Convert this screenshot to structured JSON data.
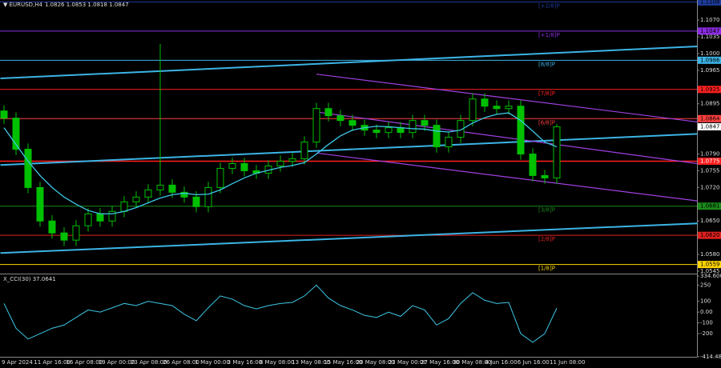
{
  "chart_data": [
    {
      "type": "candlestick",
      "title": "▼ EURUSD,H4",
      "ohlc_label": "1.0826 1.0853 1.0818 1.0847",
      "x_labels": [
        "9 Apr 2024",
        "11 Apr 16:00",
        "16 Apr 08:00",
        "19 Apr 00:00",
        "23 Apr 08:00",
        "26 Apr 08:00",
        "1 May 00:00",
        "3 May 16:00",
        "8 May 08:00",
        "13 May 08:00",
        "15 May 16:00",
        "20 May 08:00",
        "23 May 00:00",
        "27 May 16:00",
        "30 May 08:00",
        "4 Jun 16:00",
        "6 Jun 16:00",
        "11 Jun 08:00"
      ],
      "open": [
        1.088,
        1.0865,
        1.08,
        1.072,
        1.065,
        1.0625,
        1.061,
        1.064,
        1.0665,
        1.065,
        1.067,
        1.069,
        1.07,
        1.0715,
        1.0725,
        1.071,
        1.07,
        1.068,
        1.072,
        1.076,
        1.077,
        1.0755,
        1.075,
        1.0765,
        1.0775,
        1.078,
        1.0815,
        1.0885,
        1.087,
        1.086,
        1.085,
        1.084,
        1.0835,
        1.0845,
        1.0835,
        1.086,
        1.085,
        1.0805,
        1.0825,
        1.086,
        1.0905,
        1.089,
        1.0885,
        1.089,
        1.079,
        1.0745,
        1.074
      ],
      "high": [
        1.0892,
        1.0877,
        1.0812,
        1.0732,
        1.0662,
        1.0637,
        1.0652,
        1.0677,
        1.0677,
        1.0682,
        1.0702,
        1.0712,
        1.0727,
        1.102,
        1.0737,
        1.0722,
        1.0712,
        1.0732,
        1.0772,
        1.0782,
        1.0782,
        1.0767,
        1.0777,
        1.0787,
        1.0792,
        1.0827,
        1.0897,
        1.0897,
        1.0882,
        1.0872,
        1.0862,
        1.0852,
        1.0857,
        1.0857,
        1.0872,
        1.0872,
        1.0862,
        1.0837,
        1.0872,
        1.0917,
        1.0917,
        1.0902,
        1.0902,
        1.0902,
        1.0802,
        1.0757,
        1.0853
      ],
      "low": [
        1.0853,
        1.0788,
        1.0708,
        1.0638,
        1.0613,
        1.0598,
        1.0598,
        1.0628,
        1.0638,
        1.0638,
        1.0658,
        1.0678,
        1.0688,
        1.0703,
        1.0698,
        1.0688,
        1.0668,
        1.0668,
        1.0708,
        1.0748,
        1.0743,
        1.0738,
        1.0738,
        1.0753,
        1.0763,
        1.0768,
        1.0803,
        1.0858,
        1.0848,
        1.0838,
        1.0828,
        1.0823,
        1.0823,
        1.0823,
        1.0823,
        1.0838,
        1.0793,
        1.0793,
        1.0813,
        1.0848,
        1.0878,
        1.0873,
        1.0873,
        1.0778,
        1.0733,
        1.0728,
        1.0728
      ],
      "close": [
        1.0865,
        1.08,
        1.072,
        1.065,
        1.0625,
        1.061,
        1.064,
        1.0665,
        1.065,
        1.067,
        1.069,
        1.07,
        1.0715,
        1.0725,
        1.071,
        1.07,
        1.068,
        1.072,
        1.076,
        1.077,
        1.0755,
        1.075,
        1.0765,
        1.0775,
        1.078,
        1.0815,
        1.0885,
        1.087,
        1.086,
        1.085,
        1.084,
        1.0835,
        1.0845,
        1.0835,
        1.086,
        1.085,
        1.0805,
        1.0825,
        1.086,
        1.0905,
        1.089,
        1.0885,
        1.089,
        1.079,
        1.0745,
        1.074,
        1.0847
      ],
      "color": "#00c000",
      "ma": {
        "color": "#3cc8e6",
        "values": [
          1.0845,
          1.081,
          1.0775,
          1.0745,
          1.072,
          1.07,
          1.0685,
          1.0672,
          1.0665,
          1.0665,
          1.067,
          1.0678,
          1.0688,
          1.0698,
          1.0705,
          1.0708,
          1.0705,
          1.0706,
          1.0715,
          1.0728,
          1.074,
          1.075,
          1.0756,
          1.0762,
          1.0766,
          1.0772,
          1.079,
          1.081,
          1.0828,
          1.084,
          1.0845,
          1.0848,
          1.0847,
          1.0845,
          1.0843,
          1.0842,
          1.0838,
          1.0836,
          1.084,
          1.0855,
          1.0866,
          1.0873,
          1.0876,
          1.086,
          1.0838,
          1.0815,
          1.0805
        ]
      },
      "trendlines": [
        {
          "color": "#3cb4e6",
          "x": [
            -0.3,
            57.7
          ],
          "y": [
            1.0948,
            1.1015
          ]
        },
        {
          "color": "#3cb4e6",
          "x": [
            -0.3,
            57.7
          ],
          "y": [
            1.0767,
            1.0832
          ]
        },
        {
          "color": "#3cb4e6",
          "x": [
            -0.3,
            57.7
          ],
          "y": [
            1.0583,
            1.0645
          ]
        },
        {
          "color": "#a040e0",
          "x": [
            26,
            57.7
          ],
          "y": [
            1.0957,
            1.0857
          ]
        },
        {
          "color": "#a040e0",
          "x": [
            26,
            57.7
          ],
          "y": [
            1.0878,
            1.077
          ]
        },
        {
          "color": "#a040e0",
          "x": [
            26,
            57.7
          ],
          "y": [
            1.0792,
            1.0692
          ]
        }
      ],
      "levels": [
        {
          "label": "[+2/8]P",
          "value": 1.1108,
          "value_label": "1.1108",
          "color": "#1e3c9c"
        },
        {
          "label": "[+1/8]P",
          "value": 1.1047,
          "value_label": "1.1047",
          "color": "#8a2be2"
        },
        {
          "label": "[8/8]P",
          "value": 1.0986,
          "value_label": "1.0986",
          "color": "#3cb4e6"
        },
        {
          "label": "[7/8]P",
          "value": 1.0925,
          "value_label": "1.0925",
          "color": "#ff2020"
        },
        {
          "label": "[6/8]P",
          "value": 1.0864,
          "value_label": "1.0864",
          "color": "#ff4040"
        },
        {
          "label": "[3/8]P",
          "value": 1.0681,
          "value_label": "1.0681",
          "color": "#1a8a1a"
        },
        {
          "label": "[2/8]P",
          "value": 1.062,
          "value_label": "1.0620",
          "color": "#e02020"
        },
        {
          "label": "[1/8]P",
          "value": 1.0559,
          "value_label": "1.0559",
          "color": "#ffd700"
        }
      ],
      "hlines": [
        {
          "value": 1.0775,
          "value_label": "1.0775",
          "color": "#ff2020"
        }
      ],
      "last_price": {
        "value": 1.0847,
        "label": "1.0847"
      },
      "ylim": [
        1.054,
        1.1112
      ],
      "yticks": [
        {
          "value": 1.107,
          "label": "1.1070"
        },
        {
          "value": 1.1035,
          "label": "1.1035"
        },
        {
          "value": 1.1,
          "label": "1.1000"
        },
        {
          "value": 1.0965,
          "label": "1.0965"
        },
        {
          "value": 1.0895,
          "label": "1.0895"
        },
        {
          "value": 1.079,
          "label": "1.0790"
        },
        {
          "value": 1.0755,
          "label": "1.0755"
        },
        {
          "value": 1.072,
          "label": "1.0720"
        },
        {
          "value": 1.065,
          "label": "1.0650"
        },
        {
          "value": 1.058,
          "label": "1.0580"
        },
        {
          "value": 1.0545,
          "label": "1.0545"
        }
      ]
    },
    {
      "type": "line",
      "title": "X_CCI(30) 37.0641",
      "color": "#3cc8e6",
      "values": [
        80,
        -150,
        -250,
        -200,
        -150,
        -120,
        -50,
        20,
        0,
        40,
        80,
        60,
        100,
        80,
        60,
        -20,
        -80,
        40,
        150,
        120,
        60,
        30,
        60,
        80,
        90,
        150,
        250,
        130,
        60,
        20,
        -30,
        -50,
        0,
        -40,
        60,
        20,
        -120,
        -60,
        80,
        180,
        110,
        80,
        90,
        -200,
        -280,
        -200,
        37.0641
      ],
      "ylim": [
        -414.4815,
        334.6005
      ],
      "yticks": [
        334.6005,
        250,
        100,
        {
          "value": 0,
          "label": "0.00"
        },
        -100,
        -200,
        -414.4815
      ]
    }
  ]
}
